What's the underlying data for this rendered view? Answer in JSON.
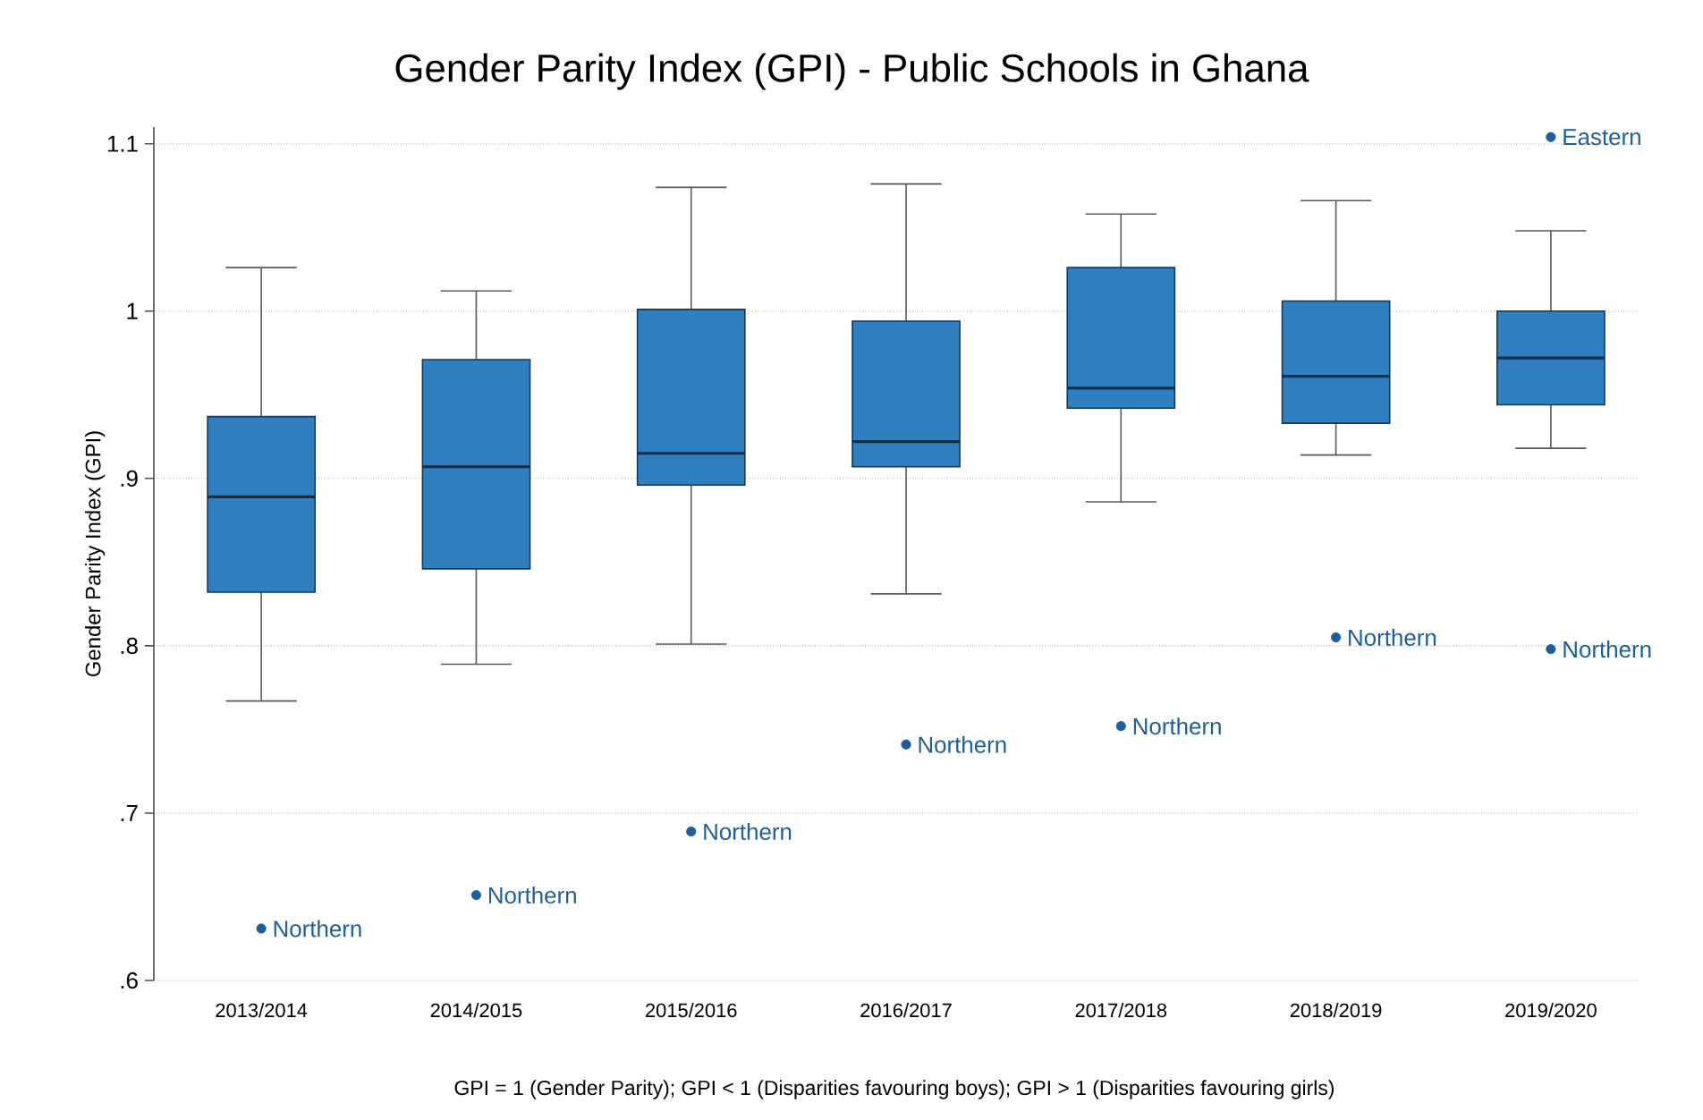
{
  "chart_data": {
    "type": "box",
    "title": "Gender Parity Index (GPI) - Public Schools in Ghana",
    "xlabel": "GPI = 1 (Gender Parity); GPI < 1 (Disparities favouring boys); GPI > 1 (Disparities favouring girls)",
    "ylabel": "Gender Parity Index (GPI)",
    "categories": [
      "2013/2014",
      "2014/2015",
      "2015/2016",
      "2016/2017",
      "2017/2018",
      "2018/2019",
      "2019/2020"
    ],
    "color": "#2f7fc1",
    "boxes": [
      {
        "low": 0.767,
        "q1": 0.832,
        "median": 0.889,
        "q3": 0.937,
        "high": 1.026
      },
      {
        "low": 0.789,
        "q1": 0.846,
        "median": 0.907,
        "q3": 0.971,
        "high": 1.012
      },
      {
        "low": 0.801,
        "q1": 0.896,
        "median": 0.915,
        "q3": 1.001,
        "high": 1.074
      },
      {
        "low": 0.831,
        "q1": 0.907,
        "median": 0.922,
        "q3": 0.994,
        "high": 1.076
      },
      {
        "low": 0.886,
        "q1": 0.942,
        "median": 0.954,
        "q3": 1.026,
        "high": 1.058
      },
      {
        "low": 0.914,
        "q1": 0.933,
        "median": 0.961,
        "q3": 1.006,
        "high": 1.066
      },
      {
        "low": 0.918,
        "q1": 0.944,
        "median": 0.972,
        "q3": 1.0,
        "high": 1.048
      }
    ],
    "series": [
      {
        "type": "scatter",
        "color": "#1f5f99",
        "x": [
          "2013/2014",
          "2014/2015",
          "2015/2016",
          "2016/2017",
          "2017/2018",
          "2018/2019",
          "2019/2020",
          "2019/2020"
        ],
        "values": [
          0.631,
          0.651,
          0.689,
          0.741,
          0.752,
          0.805,
          1.104,
          0.798
        ],
        "value_labels": [
          "Northern",
          "Northern",
          "Northern",
          "Northern",
          "Northern",
          "Northern",
          "Eastern",
          "Northern"
        ]
      }
    ],
    "ylim": [
      0.6,
      1.11
    ],
    "yticks": [
      {
        "value": 0.6,
        "label": ".6"
      },
      {
        "value": 0.7,
        "label": ".7"
      },
      {
        "value": 0.8,
        "label": ".8"
      },
      {
        "value": 0.9,
        "label": ".9"
      },
      1,
      1.1
    ],
    "grid": "y"
  }
}
